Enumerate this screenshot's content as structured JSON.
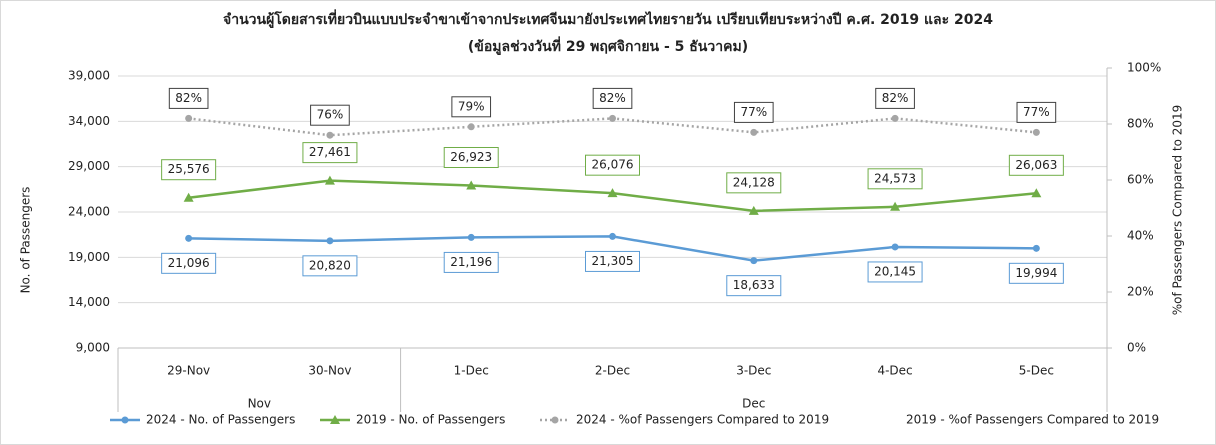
{
  "chart_data": {
    "type": "line",
    "title": "จำนวนผู้โดยสารเที่ยวบินแบบประจำขาเข้าจากประเทศจีนมายังประเทศไทยรายวัน  เปรียบเทียบระหว่างปี  ค.ศ. 2019 และ 2024",
    "subtitle": "(ข้อมูลช่วงวันที่ 29 พฤศจิกายน - 5 ธันวาคม)",
    "y_label": "No. of Passengers",
    "y2_label": "%of Passengers Compared to 2019",
    "categories": [
      "29-Nov",
      "30-Nov",
      "1-Dec",
      "2-Dec",
      "3-Dec",
      "4-Dec",
      "5-Dec"
    ],
    "category_groups": [
      "Nov",
      null,
      "Dec",
      null,
      null,
      null,
      null
    ],
    "ylim": [
      9000,
      39000
    ],
    "yticks": [
      {
        "value": 9000,
        "label": "9,000"
      },
      {
        "value": 14000,
        "label": "14,000"
      },
      {
        "value": 19000,
        "label": "19,000"
      },
      {
        "value": 24000,
        "label": "24,000"
      },
      {
        "value": 29000,
        "label": "29,000"
      },
      {
        "value": 34000,
        "label": "34,000"
      },
      {
        "value": 39000,
        "label": "39,000"
      }
    ],
    "y2lim": [
      0,
      100
    ],
    "y2ticks": [
      {
        "value": 0,
        "label": "0%"
      },
      {
        "value": 20,
        "label": "20%"
      },
      {
        "value": 40,
        "label": "40%"
      },
      {
        "value": 60,
        "label": "60%"
      },
      {
        "value": 80,
        "label": "80%"
      },
      {
        "value": 100,
        "label": "100%"
      }
    ],
    "grid": true,
    "legend": "bottom",
    "series": [
      {
        "name": "2024 - No. of Passengers",
        "color": "#5b9bd5",
        "marker": "circle",
        "line": "solid",
        "values": [
          21096,
          20820,
          21196,
          21305,
          18633,
          20145,
          19994
        ],
        "value_labels": [
          "21,096",
          "20,820",
          "21,196",
          "21,305",
          "18,633",
          "20,145",
          "19,994"
        ],
        "label_position": "below"
      },
      {
        "name": "2019 - No. of Passengers",
        "color": "#70ad47",
        "marker": "triangle",
        "line": "solid",
        "values": [
          25576,
          27461,
          26923,
          26076,
          24128,
          24573,
          26063
        ],
        "value_labels": [
          "25,576",
          "27,461",
          "26,923",
          "26,076",
          "24,128",
          "24,573",
          "26,063"
        ],
        "label_position": "above"
      },
      {
        "name": "2024 - %of Passengers Compared to 2019",
        "color": "#a5a5a5",
        "marker": "circle",
        "line": "dotted",
        "axis": "y2",
        "values": [
          82,
          76,
          79,
          82,
          77,
          82,
          77
        ],
        "value_labels": [
          "82%",
          "76%",
          "79%",
          "82%",
          "77%",
          "82%",
          "77%"
        ],
        "label_position": "above"
      },
      {
        "name": "2019 - %of Passengers Compared to 2019",
        "axis": "y2",
        "values": [
          null,
          null,
          null,
          null,
          null,
          null,
          null
        ]
      }
    ]
  }
}
